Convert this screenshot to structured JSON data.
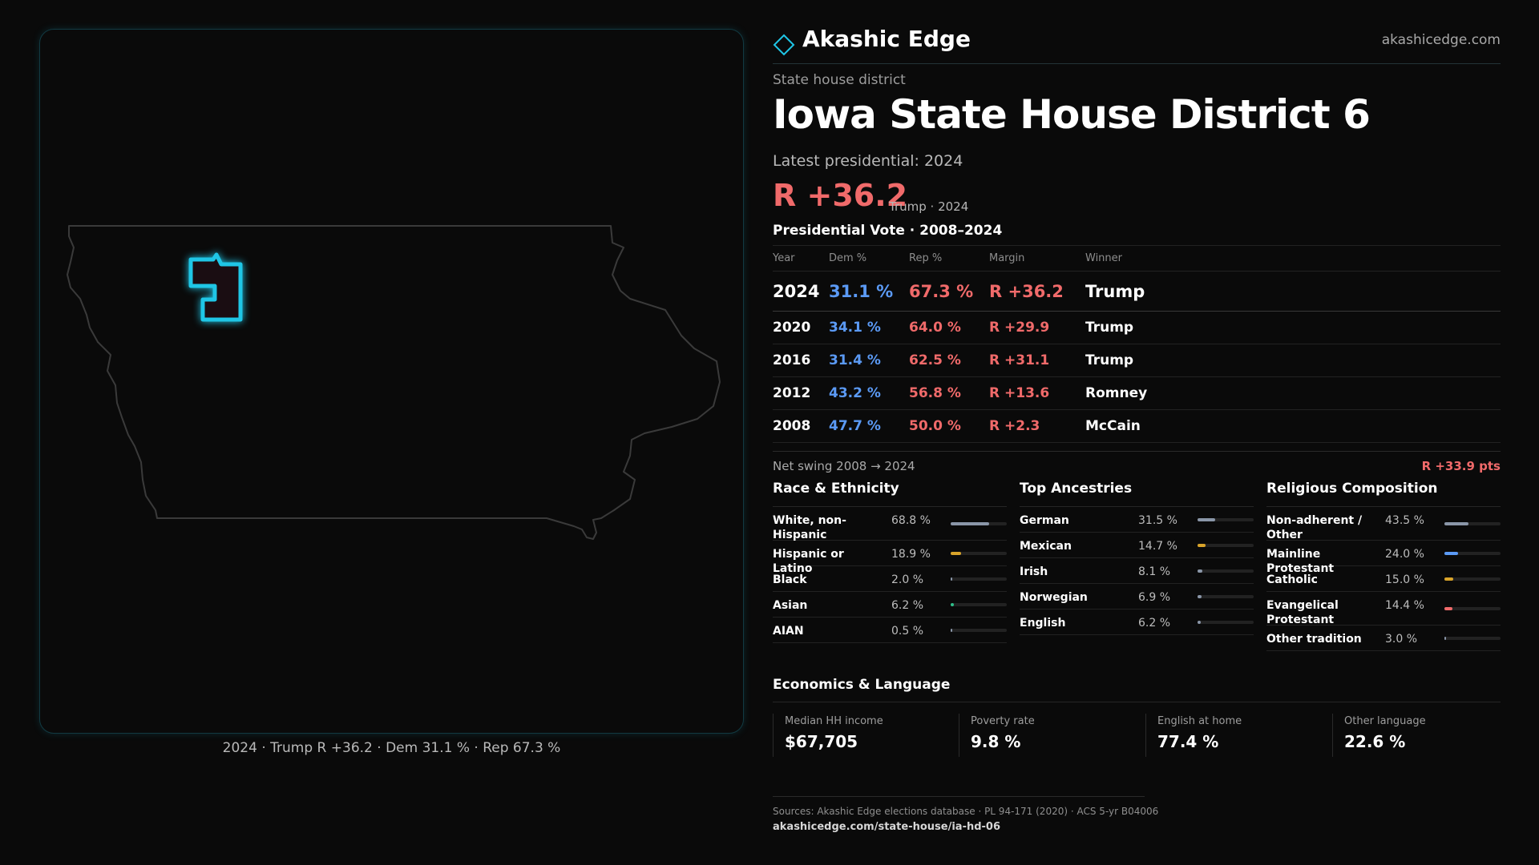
{
  "brand": {
    "name": "Akashic Edge",
    "url": "akashicedge.com"
  },
  "district": {
    "kind": "State house district",
    "title": "Iowa State House District 6",
    "latest_label": "Latest presidential: 2024",
    "margin": "R +36.2",
    "margin_meta": "Trump · 2024"
  },
  "map": {
    "caption": "2024 · Trump R +36.2 · Dem 31.1 % · Rep 67.3 %",
    "state_outline_color": "#3a3a3a",
    "district_color": "#1fc6e6"
  },
  "presidential": {
    "title": "Presidential Vote · 2008–2024",
    "headers": {
      "year": "Year",
      "dem": "Dem %",
      "rep": "Rep %",
      "margin": "Margin",
      "winner": "Winner"
    },
    "rows": [
      {
        "year": "2024",
        "dem": "31.1 %",
        "rep": "67.3 %",
        "margin": "R +36.2",
        "winner": "Trump"
      },
      {
        "year": "2020",
        "dem": "34.1 %",
        "rep": "64.0 %",
        "margin": "R +29.9",
        "winner": "Trump"
      },
      {
        "year": "2016",
        "dem": "31.4 %",
        "rep": "62.5 %",
        "margin": "R +31.1",
        "winner": "Trump"
      },
      {
        "year": "2012",
        "dem": "43.2 %",
        "rep": "56.8 %",
        "margin": "R +13.6",
        "winner": "Romney"
      },
      {
        "year": "2008",
        "dem": "47.7 %",
        "rep": "50.0 %",
        "margin": "R +2.3",
        "winner": "McCain"
      }
    ],
    "swing_label": "Net swing 2008 → 2024",
    "swing_value": "R +33.9 pts"
  },
  "race": {
    "title": "Race & Ethnicity",
    "rows": [
      {
        "label": "White, non-Hispanic",
        "pct": "68.8 %",
        "value": 68.8,
        "color": "#8a96a8",
        "tall": true
      },
      {
        "label": "Hispanic or Latino",
        "pct": "18.9 %",
        "value": 18.9,
        "color": "#d9a42a",
        "tall": false
      },
      {
        "label": "Black",
        "pct": "2.0 %",
        "value": 2.0,
        "color": "#8a96a8",
        "tall": false
      },
      {
        "label": "Asian",
        "pct": "6.2 %",
        "value": 6.2,
        "color": "#2fbf8a",
        "tall": false
      },
      {
        "label": "AIAN",
        "pct": "0.5 %",
        "value": 0.5,
        "color": "#8a96a8",
        "tall": false
      }
    ]
  },
  "ancestry": {
    "title": "Top Ancestries",
    "rows": [
      {
        "label": "German",
        "pct": "31.5 %",
        "value": 31.5,
        "color": "#8a96a8",
        "tall": false
      },
      {
        "label": "Mexican",
        "pct": "14.7 %",
        "value": 14.7,
        "color": "#d9a42a",
        "tall": false
      },
      {
        "label": "Irish",
        "pct": "8.1 %",
        "value": 8.1,
        "color": "#8a96a8",
        "tall": false
      },
      {
        "label": "Norwegian",
        "pct": "6.9 %",
        "value": 6.9,
        "color": "#8a96a8",
        "tall": false
      },
      {
        "label": "English",
        "pct": "6.2 %",
        "value": 6.2,
        "color": "#8a96a8",
        "tall": false
      }
    ]
  },
  "religion": {
    "title": "Religious Composition",
    "rows": [
      {
        "label": "Non-adherent / Other",
        "pct": "43.5 %",
        "value": 43.5,
        "color": "#8a96a8",
        "tall": true
      },
      {
        "label": "Mainline Protestant",
        "pct": "24.0 %",
        "value": 24.0,
        "color": "#5b9af5",
        "tall": false
      },
      {
        "label": "Catholic",
        "pct": "15.0 %",
        "value": 15.0,
        "color": "#d9a42a",
        "tall": false
      },
      {
        "label": "Evangelical Protestant",
        "pct": "14.4 %",
        "value": 14.4,
        "color": "#f06a6a",
        "tall": true
      },
      {
        "label": "Other tradition",
        "pct": "3.0 %",
        "value": 3.0,
        "color": "#8a96a8",
        "tall": false
      }
    ]
  },
  "economics": {
    "title": "Economics & Language",
    "items": [
      {
        "label": "Median HH income",
        "value": "$67,705"
      },
      {
        "label": "Poverty rate",
        "value": "9.8 %"
      },
      {
        "label": "English at home",
        "value": "77.4 %"
      },
      {
        "label": "Other language",
        "value": "22.6 %"
      }
    ]
  },
  "footer": {
    "sources": "Sources: Akashic Edge elections database · PL 94-171 (2020) · ACS 5-yr B04006",
    "url": "akashicedge.com/state-house/ia-hd-06"
  },
  "colors": {
    "dem": "#5b9af5",
    "rep": "#f06a6a",
    "accent": "#1fc6e6"
  }
}
